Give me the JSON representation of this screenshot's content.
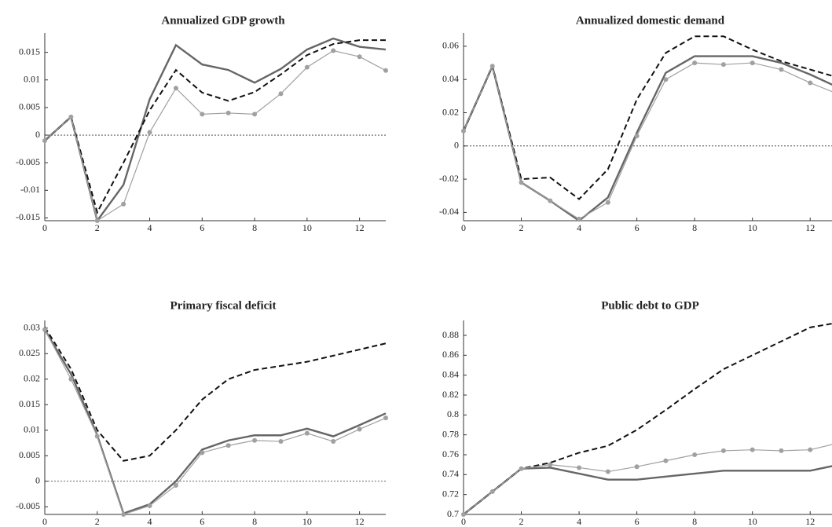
{
  "chart_data": [
    {
      "type": "line",
      "title": "Annualized GDP growth",
      "x": [
        0,
        1,
        2,
        3,
        4,
        5,
        6,
        7,
        8,
        9,
        10,
        11,
        12,
        13
      ],
      "xlim": [
        0,
        13
      ],
      "xticks": [
        0,
        2,
        4,
        6,
        8,
        10,
        12
      ],
      "ylim": [
        -0.0155,
        0.0185
      ],
      "yticks": [
        -0.015,
        -0.01,
        -0.005,
        0,
        0.005,
        0.01,
        0.015
      ],
      "zero_line": true,
      "series": [
        {
          "color": "#666666",
          "line_style": "solid",
          "markers": false,
          "values": [
            -0.001,
            0.0033,
            -0.0155,
            -0.009,
            0.0065,
            0.0163,
            0.0128,
            0.0118,
            0.0095,
            0.012,
            0.0155,
            0.0175,
            0.016,
            0.0155
          ]
        },
        {
          "color": "#111111",
          "line_style": "dashed",
          "markers": false,
          "values": [
            -0.001,
            0.0033,
            -0.014,
            -0.005,
            0.0045,
            0.0118,
            0.0077,
            0.0062,
            0.0078,
            0.011,
            0.0145,
            0.0165,
            0.0172,
            0.0172
          ]
        },
        {
          "color": "#a0a0a0",
          "line_style": "solid",
          "markers": true,
          "values": [
            -0.001,
            0.0033,
            -0.0155,
            -0.0125,
            0.0005,
            0.0085,
            0.0038,
            0.004,
            0.0038,
            0.0075,
            0.0123,
            0.0153,
            0.0142,
            0.0117
          ]
        }
      ]
    },
    {
      "type": "line",
      "title": "Annualized domestic demand",
      "x": [
        0,
        1,
        2,
        3,
        4,
        5,
        6,
        7,
        8,
        9,
        10,
        11,
        12,
        13
      ],
      "xlim": [
        0,
        13
      ],
      "xticks": [
        0,
        2,
        4,
        6,
        8,
        10,
        12
      ],
      "ylim": [
        -0.045,
        0.068
      ],
      "yticks": [
        -0.04,
        -0.02,
        0,
        0.02,
        0.04,
        0.06
      ],
      "zero_line": true,
      "series": [
        {
          "color": "#666666",
          "line_style": "solid",
          "markers": false,
          "values": [
            0.009,
            0.048,
            -0.022,
            -0.033,
            -0.045,
            -0.031,
            0.008,
            0.044,
            0.054,
            0.054,
            0.054,
            0.05,
            0.043,
            0.035
          ]
        },
        {
          "color": "#111111",
          "line_style": "dashed",
          "markers": false,
          "values": [
            0.009,
            0.048,
            -0.02,
            -0.019,
            -0.032,
            -0.014,
            0.028,
            0.056,
            0.066,
            0.066,
            0.058,
            0.051,
            0.046,
            0.041
          ]
        },
        {
          "color": "#a0a0a0",
          "line_style": "solid",
          "markers": true,
          "values": [
            0.009,
            0.048,
            -0.022,
            -0.033,
            -0.044,
            -0.034,
            0.006,
            0.04,
            0.05,
            0.049,
            0.05,
            0.046,
            0.038,
            0.031
          ]
        }
      ]
    },
    {
      "type": "line",
      "title": "Primary fiscal deficit",
      "x": [
        0,
        1,
        2,
        3,
        4,
        5,
        6,
        7,
        8,
        9,
        10,
        11,
        12,
        13
      ],
      "xlim": [
        0,
        13
      ],
      "xticks": [
        0,
        2,
        4,
        6,
        8,
        10,
        12
      ],
      "ylim": [
        -0.0065,
        0.0315
      ],
      "yticks": [
        -0.005,
        0,
        0.005,
        0.01,
        0.015,
        0.02,
        0.025,
        0.03
      ],
      "zero_line": true,
      "series": [
        {
          "color": "#666666",
          "line_style": "solid",
          "markers": false,
          "values": [
            0.0297,
            0.021,
            0.009,
            -0.0063,
            -0.0045,
            0,
            0.0062,
            0.008,
            0.009,
            0.009,
            0.0103,
            0.0088,
            0.011,
            0.0133
          ]
        },
        {
          "color": "#111111",
          "line_style": "dashed",
          "markers": false,
          "values": [
            0.0302,
            0.022,
            0.01,
            0.004,
            0.005,
            0.01,
            0.016,
            0.02,
            0.0218,
            0.0226,
            0.0234,
            0.0246,
            0.0258,
            0.027
          ]
        },
        {
          "color": "#a0a0a0",
          "line_style": "solid",
          "markers": true,
          "values": [
            0.0297,
            0.02,
            0.0088,
            -0.0065,
            -0.0048,
            -0.0008,
            0.0056,
            0.007,
            0.008,
            0.0078,
            0.0094,
            0.0078,
            0.0102,
            0.0124
          ]
        }
      ]
    },
    {
      "type": "line",
      "title": "Public debt to GDP",
      "x": [
        0,
        1,
        2,
        3,
        4,
        5,
        6,
        7,
        8,
        9,
        10,
        11,
        12,
        13
      ],
      "xlim": [
        0,
        13
      ],
      "xticks": [
        0,
        2,
        4,
        6,
        8,
        10,
        12
      ],
      "ylim": [
        0.7,
        0.895
      ],
      "yticks": [
        0.7,
        0.72,
        0.74,
        0.76,
        0.78,
        0.8,
        0.82,
        0.84,
        0.86,
        0.88
      ],
      "zero_line": false,
      "series": [
        {
          "color": "#666666",
          "line_style": "solid",
          "markers": false,
          "values": [
            0.7,
            0.723,
            0.746,
            0.747,
            0.741,
            0.735,
            0.735,
            0.738,
            0.741,
            0.744,
            0.744,
            0.744,
            0.744,
            0.75
          ]
        },
        {
          "color": "#111111",
          "line_style": "dashed",
          "markers": false,
          "values": [
            0.7,
            0.723,
            0.746,
            0.752,
            0.762,
            0.769,
            0.785,
            0.805,
            0.826,
            0.846,
            0.86,
            0.874,
            0.888,
            0.893
          ]
        },
        {
          "color": "#a0a0a0",
          "line_style": "solid",
          "markers": true,
          "values": [
            0.7,
            0.723,
            0.746,
            0.75,
            0.747,
            0.743,
            0.748,
            0.754,
            0.76,
            0.764,
            0.765,
            0.764,
            0.765,
            0.772
          ]
        }
      ]
    }
  ]
}
